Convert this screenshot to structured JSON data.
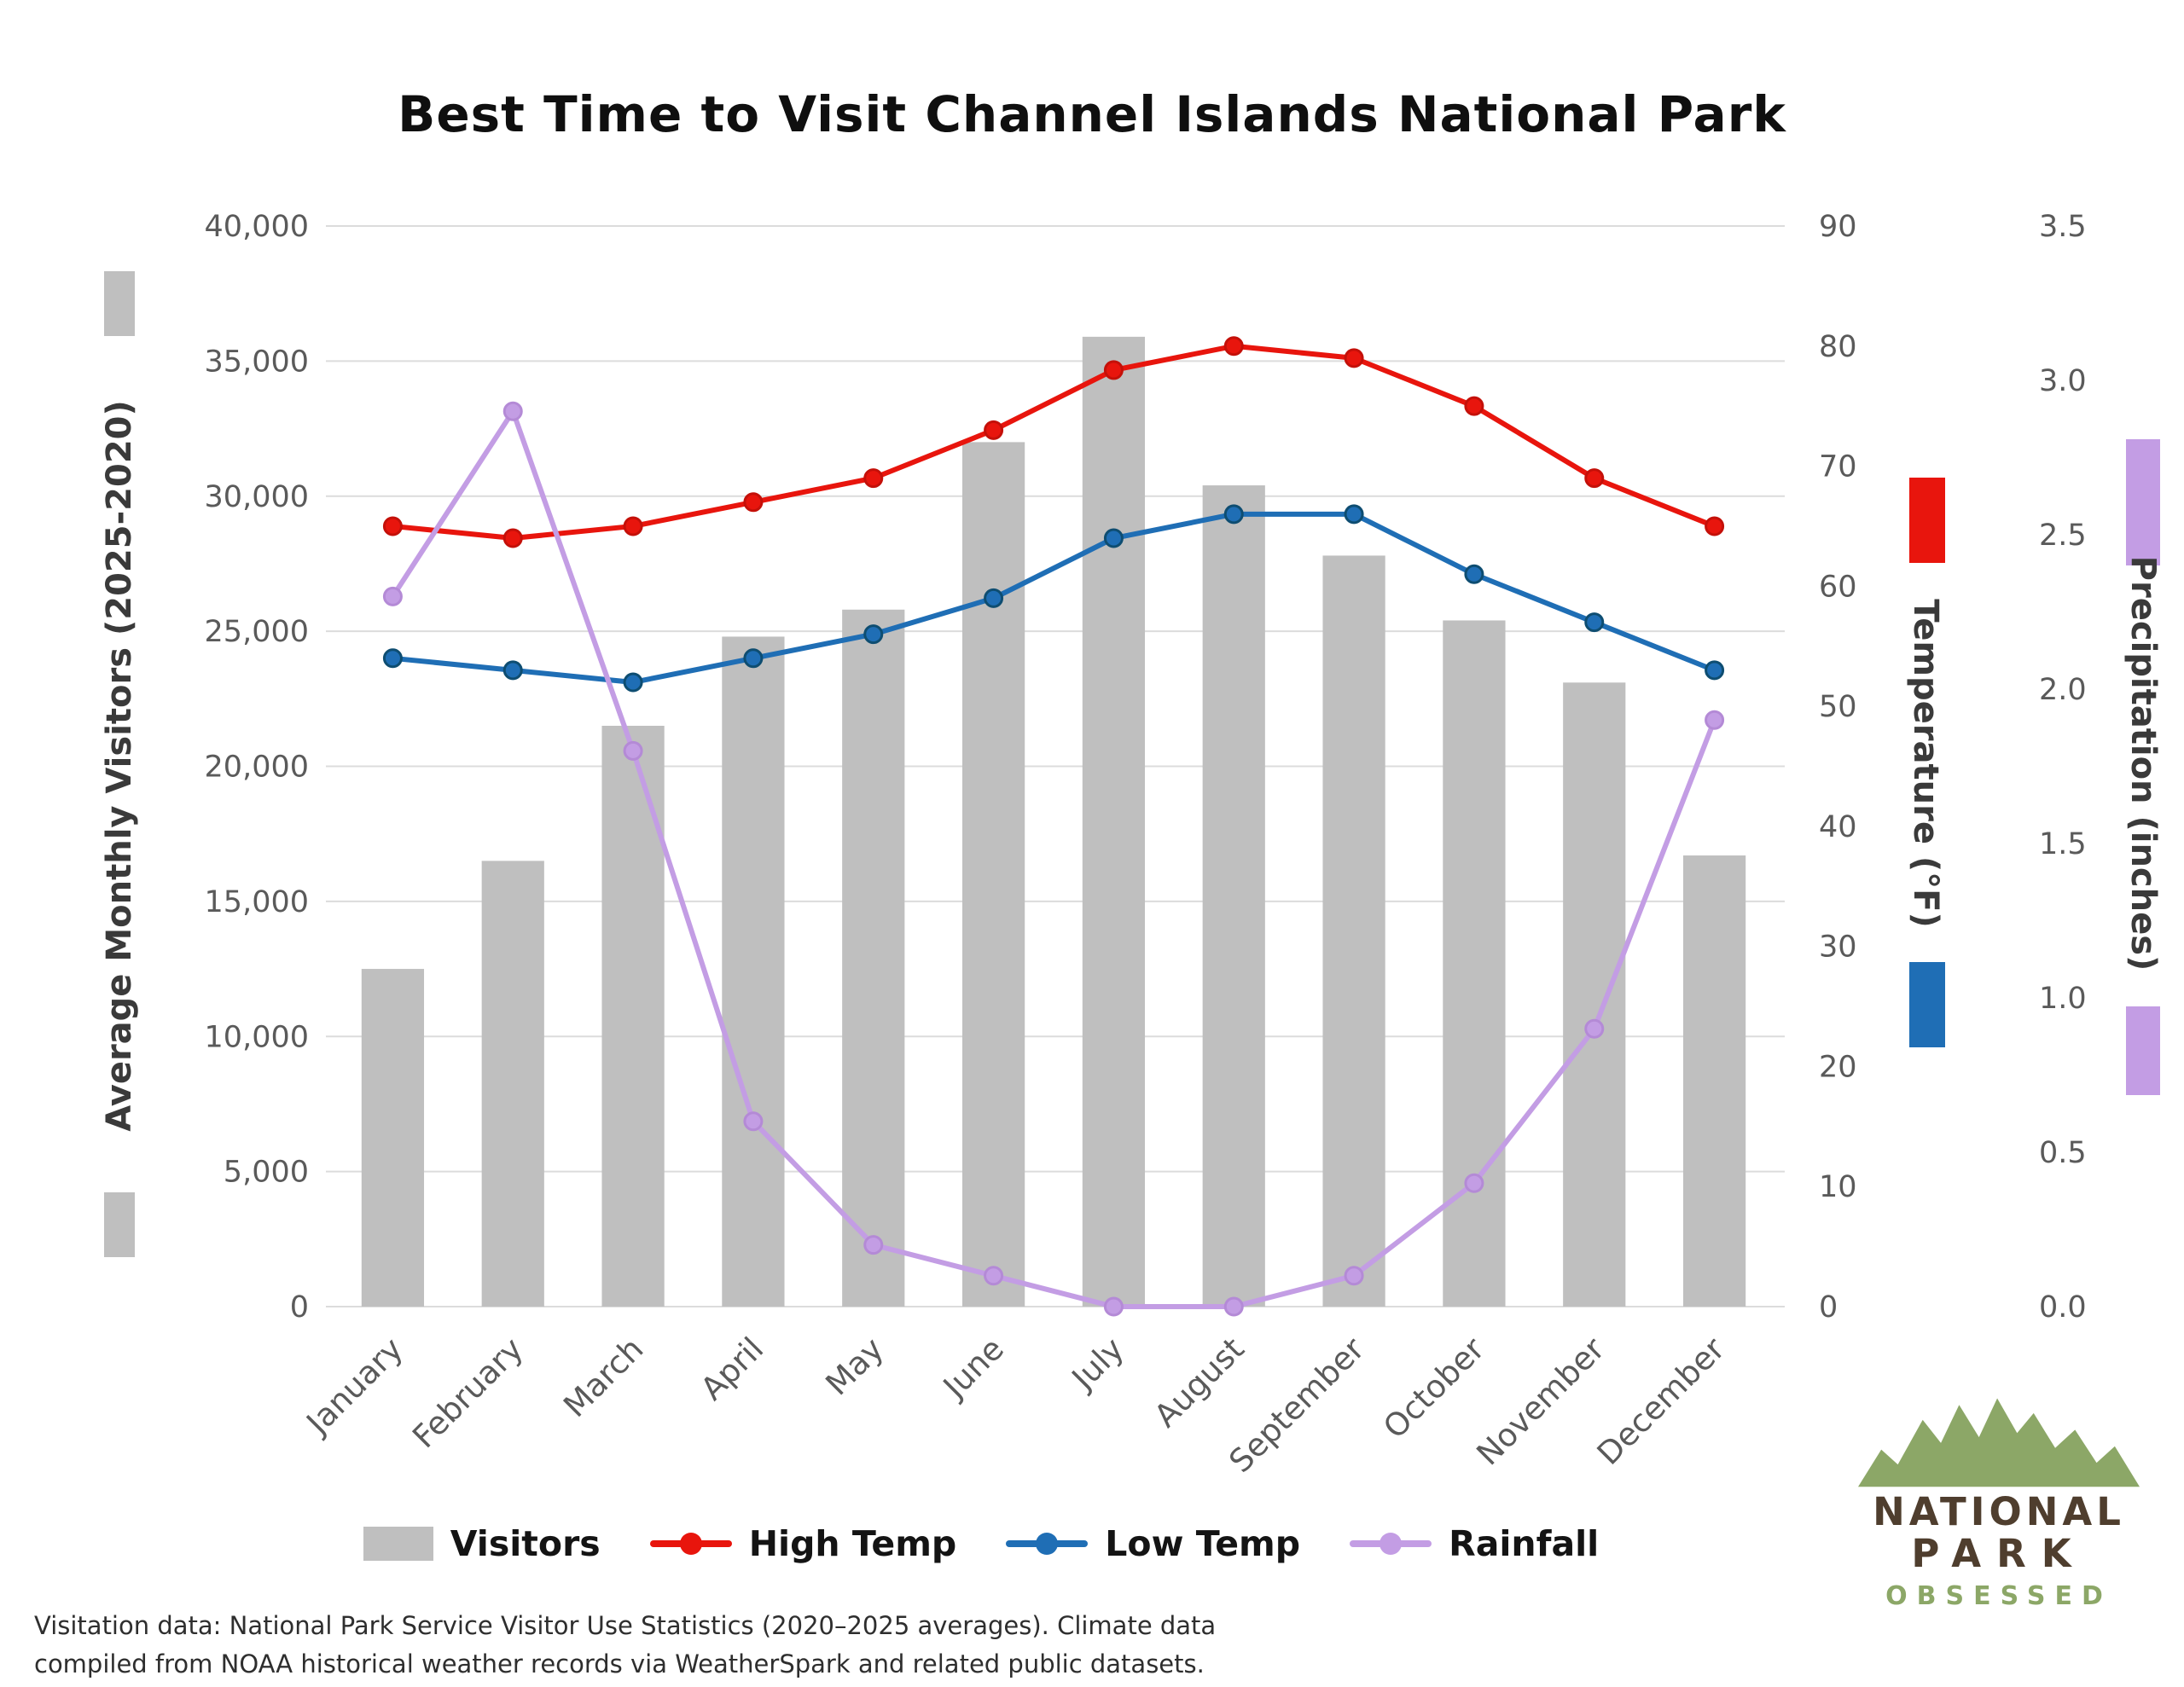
{
  "footer": {
    "line1": "Visitation data: National Park Service Visitor Use Statistics (2020–2025 averages). Climate data",
    "line2": "compiled from NOAA historical weather records via WeatherSpark and related public datasets."
  },
  "logo": {
    "name_line1": "NATIONAL",
    "name_line2": "PARK",
    "name_line3": "OBSESSED"
  },
  "colors": {
    "logo_green": "#8ca767",
    "logo_brown": "#4f3e2e",
    "grid": "#dcdcdc",
    "tick_text": "#5a5a5a"
  },
  "chart_data": {
    "type": "combo",
    "title": "Best Time to Visit Channel Islands National Park",
    "categories": [
      "January",
      "February",
      "March",
      "April",
      "May",
      "June",
      "July",
      "August",
      "September",
      "October",
      "November",
      "December"
    ],
    "series": [
      {
        "name": "Visitors",
        "type": "bar",
        "axis": "visitors",
        "color": "#bfbfbf",
        "values": [
          12500,
          16500,
          21500,
          24800,
          25800,
          32000,
          35900,
          30400,
          27800,
          25400,
          23100,
          16700
        ]
      },
      {
        "name": "High Temp",
        "type": "line",
        "axis": "temperature",
        "color": "#e8150d",
        "marker_edge": "#c41009",
        "values": [
          65,
          64,
          65,
          67,
          69,
          73,
          78,
          80,
          79,
          75,
          69,
          65
        ]
      },
      {
        "name": "Low Temp",
        "type": "line",
        "axis": "temperature",
        "color": "#1f6eb5",
        "marker_edge": "#0e4d71",
        "values": [
          54,
          53,
          52,
          54,
          56,
          59,
          64,
          66,
          66,
          61,
          57,
          53
        ]
      },
      {
        "name": "Rainfall",
        "type": "line",
        "axis": "precipitation",
        "color": "#c39de4",
        "marker_edge": "#b48ad6",
        "values": [
          2.3,
          2.9,
          1.8,
          0.6,
          0.2,
          0.1,
          0,
          0,
          0.1,
          0.4,
          0.9,
          1.9
        ]
      }
    ],
    "axes": {
      "visitors": {
        "label": "Average Monthly Visitors (2025-2020)",
        "min": 0,
        "max": 40000,
        "step": 5000,
        "format": "thousands",
        "side": "left"
      },
      "temperature": {
        "label": "Temperature (°F)",
        "min": 0,
        "max": 90,
        "step": 10,
        "format": "integer",
        "side": "right"
      },
      "precipitation": {
        "label": "Precipitation (inches)",
        "min": 0,
        "max": 3.5,
        "step": 0.5,
        "format": "one_decimal",
        "side": "right-outer"
      }
    },
    "grid": "horizontal",
    "legend_position": "bottom"
  }
}
